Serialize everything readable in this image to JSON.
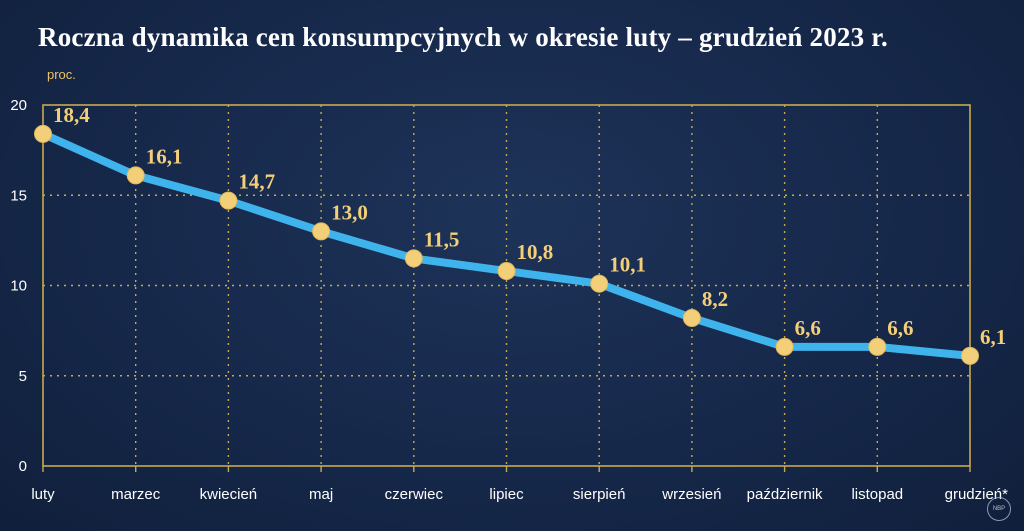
{
  "chart_data": {
    "type": "line",
    "title": "Roczna dynamika cen konsumpcyjnych w okresie luty – grudzień 2023 r.",
    "unit_label": "proc.",
    "categories": [
      "luty",
      "marzec",
      "kwiecień",
      "maj",
      "czerwiec",
      "lipiec",
      "sierpień",
      "wrzesień",
      "październik",
      "listopad",
      "grudzień*"
    ],
    "series": [
      {
        "values": [
          18.4,
          16.1,
          14.7,
          13.0,
          11.5,
          10.8,
          10.1,
          8.2,
          6.6,
          6.6,
          6.1
        ],
        "labels": [
          "18,4",
          "16,1",
          "14,7",
          "13,0",
          "11,5",
          "10,8",
          "10,1",
          "8,2",
          "6,6",
          "6,6",
          "6,1"
        ]
      }
    ],
    "yticks": [
      0,
      5,
      10,
      15,
      20
    ],
    "ylim": [
      0,
      20
    ],
    "grid": true,
    "colors": {
      "line": "#3fb4ec",
      "marker": "#f3cf79",
      "grid": "#c9a94e",
      "label": "#f3cf79"
    }
  },
  "logo_text": "NBP"
}
